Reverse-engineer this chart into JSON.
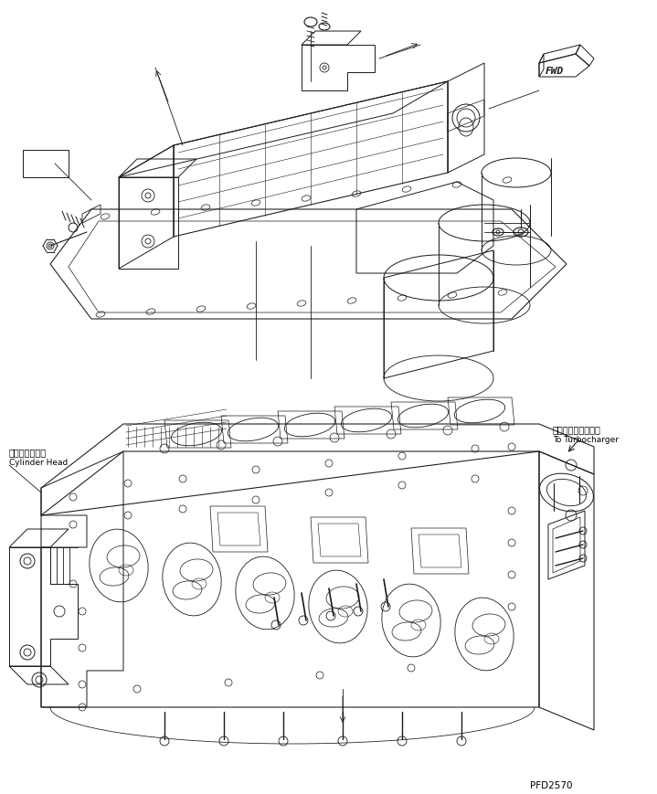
{
  "background_color": "#ffffff",
  "line_color": "#1a1a1a",
  "lw": 0.7,
  "fig_width": 7.19,
  "fig_height": 8.7,
  "dpi": 100,
  "label_cylinder_head_jp": "シリンダヘッド",
  "label_cylinder_head_en": "Cylinder Head",
  "label_turbocharger_jp": "ターボチャージャヘ",
  "label_turbocharger_en": "To Turbocharger",
  "label_fwd": "FWD",
  "part_number": "PFD2570",
  "text_color": "#000000",
  "font_size_label": 7.0,
  "font_size_part": 7.5
}
